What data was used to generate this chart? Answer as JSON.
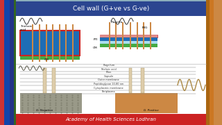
{
  "title": "Cell wall (G+ve vs G-ve)",
  "title_bg": "#2B4590",
  "title_color": "white",
  "footer_text": "Academy of Health Sciences Lodhran",
  "footer_bg": "#CC2222",
  "footer_color": "white",
  "bg_color": "#8AADBC",
  "gpos_bg": "#1E6DB5",
  "gpos_border": "#CC2222",
  "cm_color": "#44AA44",
  "orange_col": "#CC8844",
  "gray_bg": "#999988",
  "tan_bg": "#CC8844"
}
